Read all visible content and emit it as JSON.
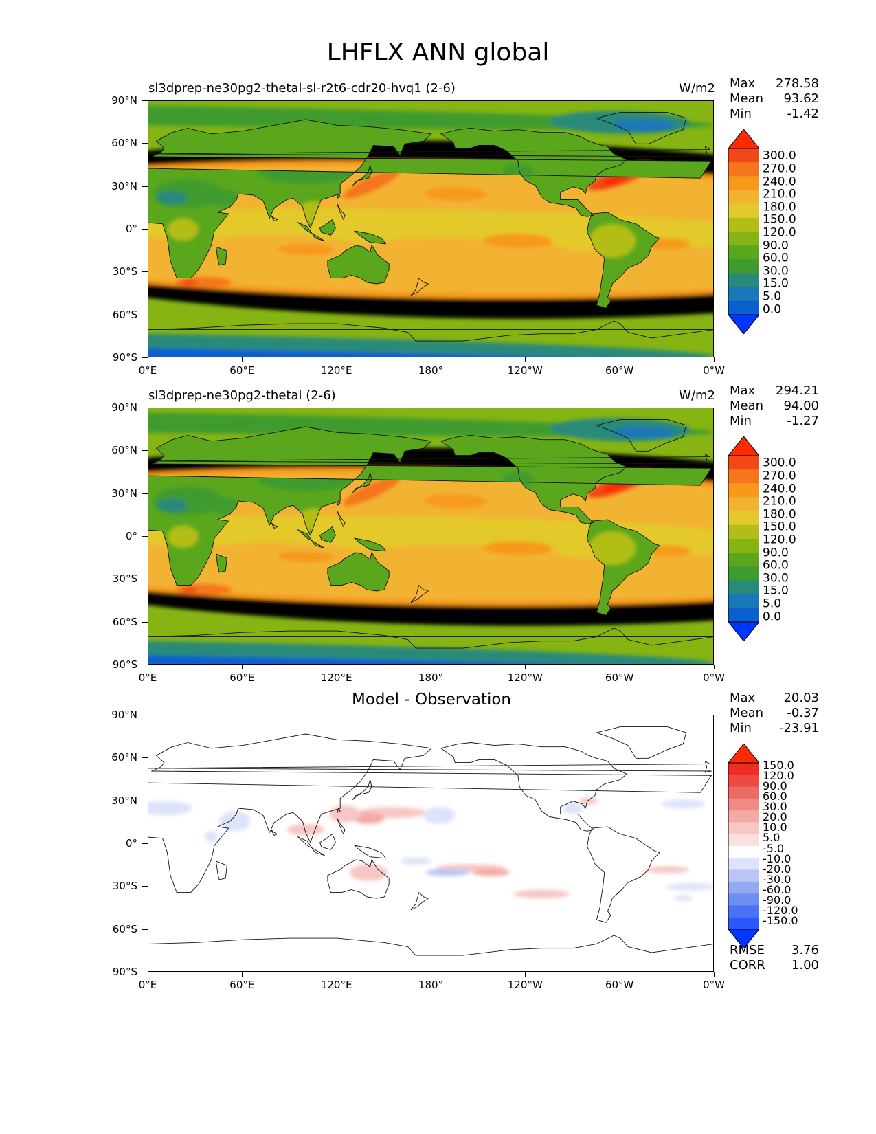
{
  "title": "LHFLX ANN global",
  "units": "W/m2",
  "axes": {
    "lat_labels": [
      "90°N",
      "60°N",
      "30°N",
      "0°",
      "30°S",
      "60°S",
      "90°S"
    ],
    "lon_labels": [
      "0°E",
      "60°E",
      "120°E",
      "180°",
      "120°W",
      "60°W",
      "0°W"
    ]
  },
  "panels": [
    {
      "title": "sl3dprep-ne30pg2-thetal-sl-r2t6-cdr20-hvq1 (2-6)",
      "units": "W/m2",
      "stats": {
        "max_label": "Max",
        "max": "278.58",
        "mean_label": "Mean",
        "mean": "93.62",
        "min_label": "Min",
        "min": "-1.42"
      },
      "colorbar_labels": [
        "300.0",
        "270.0",
        "240.0",
        "210.0",
        "180.0",
        "150.0",
        "120.0",
        "90.0",
        "60.0",
        "30.0",
        "15.0",
        "5.0",
        "0.0"
      ]
    },
    {
      "title": "sl3dprep-ne30pg2-thetal (2-6)",
      "units": "W/m2",
      "stats": {
        "max_label": "Max",
        "max": "294.21",
        "mean_label": "Mean",
        "mean": "94.00",
        "min_label": "Min",
        "min": "-1.27"
      },
      "colorbar_labels": [
        "300.0",
        "270.0",
        "240.0",
        "210.0",
        "180.0",
        "150.0",
        "120.0",
        "90.0",
        "60.0",
        "30.0",
        "15.0",
        "5.0",
        "0.0"
      ]
    },
    {
      "title": "Model - Observation",
      "stats": {
        "max_label": "Max",
        "max": "20.03",
        "mean_label": "Mean",
        "mean": "-0.37",
        "min_label": "Min",
        "min": "-23.91"
      },
      "colorbar_labels": [
        "150.0",
        "120.0",
        "90.0",
        "60.0",
        "30.0",
        "20.0",
        "10.0",
        "5.0",
        "-5.0",
        "-10.0",
        "-20.0",
        "-30.0",
        "-60.0",
        "-90.0",
        "-120.0",
        "-150.0"
      ],
      "rmse_label": "RMSE",
      "rmse": "3.76",
      "corr_label": "CORR",
      "corr": "1.00"
    }
  ],
  "colors": {
    "field_levels": [
      "#0036ff",
      "#0a5fd0",
      "#1a77b8",
      "#2a8a7a",
      "#3f9b2f",
      "#5aa71d",
      "#86b413",
      "#b2bd18",
      "#e3c92c",
      "#f2b330",
      "#f79a1c",
      "#f5761c",
      "#f24818",
      "#ff2a00"
    ],
    "diff_levels": [
      "#0036ff",
      "#2a57ff",
      "#4a72f5",
      "#6e8ff2",
      "#93aaf1",
      "#b9c6f4",
      "#dde3fa",
      "#ffffff",
      "#fbe0df",
      "#f7c7c5",
      "#f3aaa6",
      "#f08a84",
      "#eb6a63",
      "#ec4a42",
      "#f02d22",
      "#ff2a00"
    ]
  },
  "chart_data": {
    "type": "heatmap",
    "title": "LHFLX ANN global",
    "units": "W/m2",
    "xlim": [
      0,
      360
    ],
    "ylim": [
      -90,
      90
    ],
    "xticks": [
      "0°E",
      "60°E",
      "120°E",
      "180°",
      "120°W",
      "60°W",
      "0°W"
    ],
    "yticks": [
      "90°N",
      "60°N",
      "30°N",
      "0°",
      "30°S",
      "60°S",
      "90°S"
    ],
    "panels": [
      {
        "name": "sl3dprep-ne30pg2-thetal-sl-r2t6-cdr20-hvq1 (2-6)",
        "max": 278.58,
        "mean": 93.62,
        "min": -1.42,
        "levels": [
          0,
          5,
          15,
          30,
          60,
          90,
          120,
          150,
          180,
          210,
          240,
          270,
          300
        ]
      },
      {
        "name": "sl3dprep-ne30pg2-thetal (2-6)",
        "max": 294.21,
        "mean": 94.0,
        "min": -1.27,
        "levels": [
          0,
          5,
          15,
          30,
          60,
          90,
          120,
          150,
          180,
          210,
          240,
          270,
          300
        ]
      },
      {
        "name": "Model - Observation",
        "max": 20.03,
        "mean": -0.37,
        "min": -23.91,
        "rmse": 3.76,
        "corr": 1.0,
        "levels": [
          -150,
          -120,
          -90,
          -60,
          -30,
          -20,
          -10,
          -5,
          5,
          10,
          20,
          30,
          60,
          90,
          120,
          150
        ]
      }
    ]
  }
}
